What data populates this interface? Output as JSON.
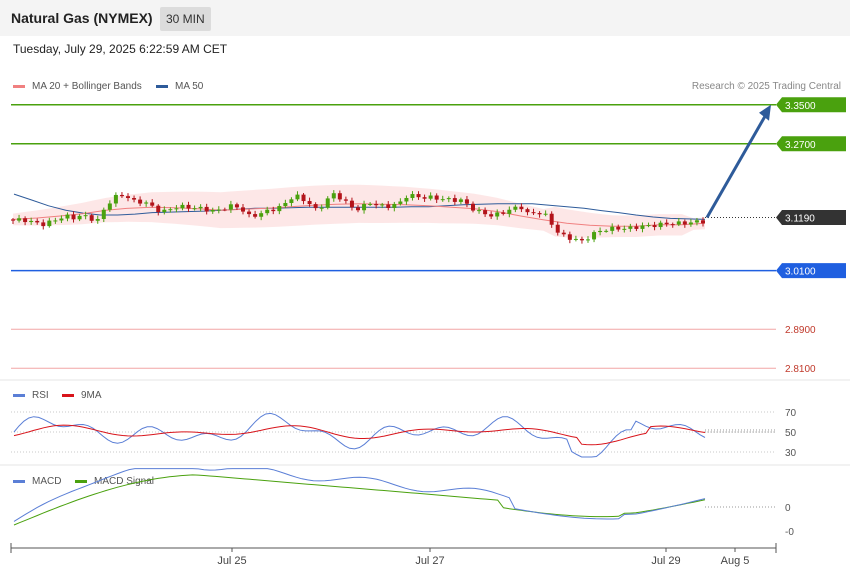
{
  "header": {
    "title": "Natural Gas (NYMEX)",
    "timeframe": "30 MIN"
  },
  "datetime": "Tuesday, July 29, 2025 6:22:59 AM CET",
  "legend": {
    "ma20": "MA 20 + Bollinger Bands",
    "ma50": "MA 50",
    "credit": "Research © 2025 Trading Central"
  },
  "rsi_legend": {
    "rsi": "RSI",
    "ma": "9MA"
  },
  "macd_legend": {
    "macd": "MACD",
    "signal": "MACD Signal"
  },
  "colors": {
    "resistance": "#4aa10e",
    "support": "#1f5fe0",
    "lower": "#d9534f",
    "current": "#333333",
    "ma20": "#f08080",
    "ma50": "#2e5b9a",
    "rsi": "#5b7fd6",
    "rsi_ma": "#d8141b",
    "macd": "#5b7fd6",
    "signal": "#4aa10e",
    "arrow": "#2e5b9a"
  },
  "levels": [
    {
      "label": "3.3500",
      "value": 3.35,
      "type": "resistance"
    },
    {
      "label": "3.2700",
      "value": 3.27,
      "type": "resistance"
    },
    {
      "label": "3.1190",
      "value": 3.119,
      "type": "current"
    },
    {
      "label": "3.0100",
      "value": 3.01,
      "type": "support"
    },
    {
      "label": "2.8900",
      "value": 2.89,
      "type": "lower"
    },
    {
      "label": "2.8100",
      "value": 2.81,
      "type": "lower"
    }
  ],
  "rsi_ticks": [
    "70",
    "50",
    "30"
  ],
  "macd_ticks": [
    "0",
    "-0"
  ],
  "x_labels": [
    "Jul 25",
    "Jul 27",
    "Jul 29",
    "Aug 5"
  ],
  "chart_data": {
    "type": "candlestick",
    "title": "Natural Gas (NYMEX)",
    "ylim": [
      2.79,
      3.37
    ],
    "x_ticks": [
      "Jul 25",
      "Jul 27",
      "Jul 29",
      "Aug 5"
    ],
    "close_path": [
      3.115,
      3.112,
      3.116,
      3.11,
      3.108,
      3.104,
      3.112,
      3.118,
      3.121,
      3.118,
      3.124,
      3.117,
      3.113,
      3.14,
      3.158,
      3.166,
      3.16,
      3.15,
      3.152,
      3.143,
      3.134,
      3.131,
      3.14,
      3.141,
      3.14,
      3.138,
      3.137,
      3.132,
      3.134,
      3.14,
      3.144,
      3.136,
      3.122,
      3.124,
      3.13,
      3.135,
      3.14,
      3.15,
      3.166,
      3.156,
      3.148,
      3.131,
      3.15,
      3.168,
      3.16,
      3.148,
      3.134,
      3.141,
      3.149,
      3.144,
      3.141,
      3.144,
      3.15,
      3.166,
      3.162,
      3.16,
      3.16,
      3.158,
      3.156,
      3.155,
      3.154,
      3.144,
      3.132,
      3.128,
      3.123,
      3.126,
      3.132,
      3.138,
      3.14,
      3.124,
      3.13,
      3.127,
      3.106,
      3.085,
      3.078,
      3.075,
      3.07,
      3.08,
      3.09,
      3.094,
      3.096,
      3.097,
      3.096,
      3.099,
      3.101,
      3.102,
      3.104,
      3.106,
      3.107,
      3.107,
      3.108,
      3.11,
      3.111
    ],
    "ma50": [
      3.167,
      3.155,
      3.143,
      3.134,
      3.128,
      3.124,
      3.124,
      3.126,
      3.129,
      3.13,
      3.131,
      3.132,
      3.134,
      3.136,
      3.138,
      3.138,
      3.139,
      3.14,
      3.14,
      3.14,
      3.14,
      3.14,
      3.14,
      3.141,
      3.141,
      3.143,
      3.145,
      3.146,
      3.147,
      3.147,
      3.147,
      3.144,
      3.141,
      3.138,
      3.133,
      3.129,
      3.124,
      3.12,
      3.117,
      3.116,
      3.115
    ],
    "ma20": [
      3.115,
      3.118,
      3.122,
      3.127,
      3.134,
      3.138,
      3.14,
      3.139,
      3.137,
      3.134,
      3.136,
      3.138,
      3.141,
      3.144,
      3.146,
      3.147,
      3.146,
      3.145,
      3.143,
      3.14,
      3.137,
      3.131,
      3.122,
      3.114,
      3.107,
      3.103,
      3.101,
      3.101,
      3.104,
      3.104,
      3.107
    ],
    "levels": [
      3.35,
      3.27,
      3.119,
      3.01,
      2.89,
      2.81
    ],
    "projection": {
      "from": 3.119,
      "to": 3.35
    },
    "rsi": {
      "ylim": [
        20,
        80
      ],
      "ticks": [
        70,
        50,
        30
      ]
    },
    "macd": {
      "ticks": [
        "0",
        "-0"
      ]
    }
  }
}
